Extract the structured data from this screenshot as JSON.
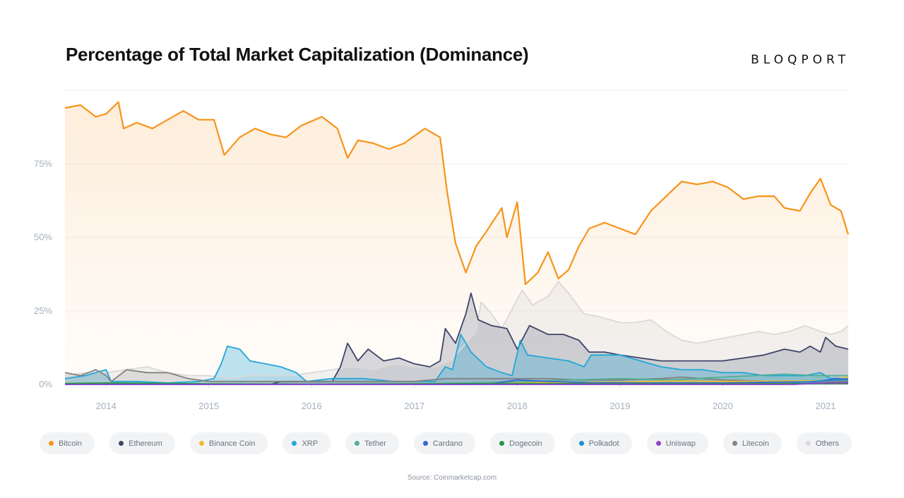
{
  "header": {
    "title": "Percentage of Total Market Capitalization (Dominance)",
    "brand": "BLOQPORT"
  },
  "source": "Source: Coinmarketcap.com",
  "chart_data": {
    "type": "area",
    "title": "Percentage of Total Market Capitalization (Dominance)",
    "xlabel": "",
    "ylabel": "",
    "xlim": [
      2013.6,
      2021.22
    ],
    "ylim": [
      0,
      100
    ],
    "grid": true,
    "y_ticks": [
      "0%",
      "25%",
      "50%",
      "75%"
    ],
    "y_tick_values": [
      0,
      25,
      50,
      75
    ],
    "x_ticks": [
      "2014",
      "2015",
      "2016",
      "2017",
      "2018",
      "2019",
      "2020",
      "2021"
    ],
    "x_tick_values": [
      2014,
      2015,
      2016,
      2017,
      2018,
      2019,
      2020,
      2021
    ],
    "legend_position": "bottom",
    "series": [
      {
        "name": "Bitcoin",
        "color": "#f7931a",
        "points": [
          [
            2013.6,
            94
          ],
          [
            2013.75,
            95
          ],
          [
            2013.9,
            91
          ],
          [
            2014.0,
            92
          ],
          [
            2014.12,
            96
          ],
          [
            2014.17,
            87
          ],
          [
            2014.3,
            89
          ],
          [
            2014.45,
            87
          ],
          [
            2014.6,
            90
          ],
          [
            2014.75,
            93
          ],
          [
            2014.9,
            90
          ],
          [
            2015.05,
            90
          ],
          [
            2015.15,
            78
          ],
          [
            2015.3,
            84
          ],
          [
            2015.45,
            87
          ],
          [
            2015.6,
            85
          ],
          [
            2015.75,
            84
          ],
          [
            2015.9,
            88
          ],
          [
            2016.1,
            91
          ],
          [
            2016.25,
            87
          ],
          [
            2016.35,
            77
          ],
          [
            2016.45,
            83
          ],
          [
            2016.6,
            82
          ],
          [
            2016.75,
            80
          ],
          [
            2016.9,
            82
          ],
          [
            2017.1,
            87
          ],
          [
            2017.25,
            84
          ],
          [
            2017.32,
            65
          ],
          [
            2017.4,
            48
          ],
          [
            2017.5,
            38
          ],
          [
            2017.6,
            47
          ],
          [
            2017.7,
            52
          ],
          [
            2017.85,
            60
          ],
          [
            2017.9,
            50
          ],
          [
            2018.0,
            62
          ],
          [
            2018.08,
            34
          ],
          [
            2018.2,
            38
          ],
          [
            2018.3,
            45
          ],
          [
            2018.4,
            36
          ],
          [
            2018.5,
            39
          ],
          [
            2018.6,
            47
          ],
          [
            2018.7,
            53
          ],
          [
            2018.85,
            55
          ],
          [
            2019.0,
            53
          ],
          [
            2019.15,
            51
          ],
          [
            2019.3,
            59
          ],
          [
            2019.45,
            64
          ],
          [
            2019.6,
            69
          ],
          [
            2019.75,
            68
          ],
          [
            2019.9,
            69
          ],
          [
            2020.05,
            67
          ],
          [
            2020.2,
            63
          ],
          [
            2020.35,
            64
          ],
          [
            2020.5,
            64
          ],
          [
            2020.6,
            60
          ],
          [
            2020.75,
            59
          ],
          [
            2020.85,
            65
          ],
          [
            2020.95,
            70
          ],
          [
            2021.05,
            61
          ],
          [
            2021.15,
            59
          ],
          [
            2021.22,
            51
          ]
        ]
      },
      {
        "name": "Ethereum",
        "color": "#3e4467",
        "points": [
          [
            2013.6,
            0
          ],
          [
            2015.6,
            0
          ],
          [
            2015.7,
            1
          ],
          [
            2016.0,
            1
          ],
          [
            2016.2,
            1
          ],
          [
            2016.28,
            6
          ],
          [
            2016.35,
            14
          ],
          [
            2016.45,
            8
          ],
          [
            2016.55,
            12
          ],
          [
            2016.7,
            8
          ],
          [
            2016.85,
            9
          ],
          [
            2017.0,
            7
          ],
          [
            2017.15,
            6
          ],
          [
            2017.25,
            8
          ],
          [
            2017.3,
            19
          ],
          [
            2017.4,
            14
          ],
          [
            2017.5,
            24
          ],
          [
            2017.55,
            31
          ],
          [
            2017.62,
            22
          ],
          [
            2017.75,
            20
          ],
          [
            2017.9,
            19
          ],
          [
            2018.0,
            12
          ],
          [
            2018.12,
            20
          ],
          [
            2018.3,
            17
          ],
          [
            2018.45,
            17
          ],
          [
            2018.6,
            15
          ],
          [
            2018.7,
            11
          ],
          [
            2018.85,
            11
          ],
          [
            2019.0,
            10
          ],
          [
            2019.2,
            9
          ],
          [
            2019.4,
            8
          ],
          [
            2019.6,
            8
          ],
          [
            2019.8,
            8
          ],
          [
            2020.0,
            8
          ],
          [
            2020.2,
            9
          ],
          [
            2020.4,
            10
          ],
          [
            2020.6,
            12
          ],
          [
            2020.75,
            11
          ],
          [
            2020.85,
            13
          ],
          [
            2020.95,
            11
          ],
          [
            2021.0,
            16
          ],
          [
            2021.1,
            13
          ],
          [
            2021.22,
            12
          ]
        ]
      },
      {
        "name": "Binance Coin",
        "color": "#f3ba2f",
        "points": [
          [
            2013.6,
            0
          ],
          [
            2017.6,
            0
          ],
          [
            2018.0,
            0.5
          ],
          [
            2018.5,
            0.7
          ],
          [
            2019.0,
            0.8
          ],
          [
            2019.5,
            1.2
          ],
          [
            2020.0,
            1.0
          ],
          [
            2020.5,
            1.1
          ],
          [
            2021.0,
            1.3
          ],
          [
            2021.22,
            2.5
          ]
        ]
      },
      {
        "name": "XRP",
        "color": "#23a7d6",
        "points": [
          [
            2013.6,
            2
          ],
          [
            2013.8,
            3
          ],
          [
            2013.9,
            4
          ],
          [
            2014.0,
            5
          ],
          [
            2014.05,
            1
          ],
          [
            2014.3,
            1
          ],
          [
            2014.6,
            0.5
          ],
          [
            2014.9,
            1
          ],
          [
            2015.05,
            2
          ],
          [
            2015.12,
            7
          ],
          [
            2015.18,
            13
          ],
          [
            2015.3,
            12
          ],
          [
            2015.4,
            8
          ],
          [
            2015.55,
            7
          ],
          [
            2015.7,
            6
          ],
          [
            2015.85,
            4
          ],
          [
            2015.95,
            1
          ],
          [
            2016.2,
            2
          ],
          [
            2016.5,
            2
          ],
          [
            2016.8,
            1
          ],
          [
            2017.0,
            1
          ],
          [
            2017.2,
            1
          ],
          [
            2017.3,
            6
          ],
          [
            2017.37,
            5
          ],
          [
            2017.45,
            17
          ],
          [
            2017.55,
            11
          ],
          [
            2017.7,
            6
          ],
          [
            2017.85,
            4
          ],
          [
            2017.95,
            3
          ],
          [
            2018.03,
            15
          ],
          [
            2018.1,
            10
          ],
          [
            2018.3,
            9
          ],
          [
            2018.5,
            8
          ],
          [
            2018.65,
            6
          ],
          [
            2018.72,
            10
          ],
          [
            2018.85,
            10
          ],
          [
            2019.0,
            10
          ],
          [
            2019.2,
            8
          ],
          [
            2019.4,
            6
          ],
          [
            2019.6,
            5
          ],
          [
            2019.8,
            5
          ],
          [
            2020.0,
            4
          ],
          [
            2020.2,
            4
          ],
          [
            2020.4,
            3
          ],
          [
            2020.6,
            3
          ],
          [
            2020.8,
            3
          ],
          [
            2020.95,
            4
          ],
          [
            2021.05,
            2
          ],
          [
            2021.22,
            2
          ]
        ]
      },
      {
        "name": "Tether",
        "color": "#50af95",
        "points": [
          [
            2013.6,
            0
          ],
          [
            2016.5,
            0
          ],
          [
            2017.0,
            0.2
          ],
          [
            2018.0,
            0.8
          ],
          [
            2018.5,
            1.5
          ],
          [
            2019.0,
            2
          ],
          [
            2019.5,
            1.5
          ],
          [
            2020.0,
            2.5
          ],
          [
            2020.3,
            3
          ],
          [
            2020.6,
            3.5
          ],
          [
            2020.9,
            3
          ],
          [
            2021.22,
            3
          ]
        ]
      },
      {
        "name": "Cardano",
        "color": "#3468d1",
        "points": [
          [
            2013.6,
            0
          ],
          [
            2017.7,
            0
          ],
          [
            2018.0,
            1.5
          ],
          [
            2018.3,
            1
          ],
          [
            2018.7,
            0.6
          ],
          [
            2019.2,
            0.5
          ],
          [
            2020.0,
            0.5
          ],
          [
            2020.5,
            0.8
          ],
          [
            2020.9,
            0.9
          ],
          [
            2021.1,
            2
          ],
          [
            2021.22,
            1.8
          ]
        ]
      },
      {
        "name": "Dogecoin",
        "color": "#23983f",
        "points": [
          [
            2013.6,
            0.3
          ],
          [
            2014.0,
            0.5
          ],
          [
            2015.0,
            0.2
          ],
          [
            2016.0,
            0.1
          ],
          [
            2017.0,
            0.2
          ],
          [
            2018.0,
            0.3
          ],
          [
            2019.0,
            0.2
          ],
          [
            2020.0,
            0.2
          ],
          [
            2021.0,
            0.3
          ],
          [
            2021.22,
            0.4
          ]
        ]
      },
      {
        "name": "Polkadot",
        "color": "#1f8dd6",
        "points": [
          [
            2013.6,
            0
          ],
          [
            2020.6,
            0
          ],
          [
            2020.75,
            0.8
          ],
          [
            2020.95,
            1.2
          ],
          [
            2021.1,
            1.5
          ],
          [
            2021.22,
            1.6
          ]
        ]
      },
      {
        "name": "Uniswap",
        "color": "#8e44c9",
        "points": [
          [
            2013.6,
            0
          ],
          [
            2020.7,
            0
          ],
          [
            2020.85,
            0.3
          ],
          [
            2021.0,
            0.5
          ],
          [
            2021.22,
            0.6
          ]
        ]
      },
      {
        "name": "Litecoin",
        "color": "#828282",
        "points": [
          [
            2013.6,
            4
          ],
          [
            2013.75,
            3
          ],
          [
            2013.9,
            5
          ],
          [
            2014.0,
            3
          ],
          [
            2014.05,
            1
          ],
          [
            2014.2,
            5
          ],
          [
            2014.4,
            4
          ],
          [
            2014.6,
            4
          ],
          [
            2014.8,
            2
          ],
          [
            2015.0,
            1
          ],
          [
            2015.2,
            1
          ],
          [
            2015.5,
            1
          ],
          [
            2015.8,
            1
          ],
          [
            2016.0,
            1
          ],
          [
            2016.5,
            1
          ],
          [
            2017.0,
            1
          ],
          [
            2017.3,
            2
          ],
          [
            2017.5,
            2
          ],
          [
            2017.8,
            2
          ],
          [
            2018.0,
            2
          ],
          [
            2018.3,
            2
          ],
          [
            2018.6,
            1.5
          ],
          [
            2019.0,
            1.5
          ],
          [
            2019.4,
            2
          ],
          [
            2019.6,
            2.5
          ],
          [
            2020.0,
            1.5
          ],
          [
            2020.5,
            1
          ],
          [
            2021.0,
            1
          ],
          [
            2021.22,
            1
          ]
        ]
      },
      {
        "name": "Others",
        "color": "#d9d9d9",
        "points": [
          [
            2013.6,
            3
          ],
          [
            2013.8,
            4
          ],
          [
            2014.0,
            4
          ],
          [
            2014.2,
            5
          ],
          [
            2014.4,
            6
          ],
          [
            2014.6,
            4
          ],
          [
            2014.8,
            3
          ],
          [
            2015.0,
            3
          ],
          [
            2015.2,
            2
          ],
          [
            2015.4,
            3
          ],
          [
            2015.6,
            3
          ],
          [
            2015.8,
            3
          ],
          [
            2016.0,
            4
          ],
          [
            2016.2,
            5
          ],
          [
            2016.4,
            6
          ],
          [
            2016.6,
            5
          ],
          [
            2016.8,
            7
          ],
          [
            2017.0,
            6
          ],
          [
            2017.2,
            6
          ],
          [
            2017.35,
            8
          ],
          [
            2017.45,
            12
          ],
          [
            2017.6,
            18
          ],
          [
            2017.65,
            28
          ],
          [
            2017.75,
            24
          ],
          [
            2017.85,
            19
          ],
          [
            2018.0,
            29
          ],
          [
            2018.05,
            32
          ],
          [
            2018.15,
            27
          ],
          [
            2018.3,
            30
          ],
          [
            2018.4,
            35
          ],
          [
            2018.5,
            31
          ],
          [
            2018.65,
            24
          ],
          [
            2018.8,
            23
          ],
          [
            2019.0,
            21
          ],
          [
            2019.15,
            21
          ],
          [
            2019.3,
            22
          ],
          [
            2019.45,
            18
          ],
          [
            2019.6,
            15
          ],
          [
            2019.75,
            14
          ],
          [
            2019.9,
            15
          ],
          [
            2020.05,
            16
          ],
          [
            2020.2,
            17
          ],
          [
            2020.35,
            18
          ],
          [
            2020.5,
            17
          ],
          [
            2020.65,
            18
          ],
          [
            2020.8,
            20
          ],
          [
            2020.95,
            18
          ],
          [
            2021.05,
            17
          ],
          [
            2021.15,
            18
          ],
          [
            2021.22,
            20
          ]
        ]
      }
    ]
  },
  "legend": [
    {
      "label": "Bitcoin",
      "color": "#f7931a"
    },
    {
      "label": "Ethereum",
      "color": "#3e4467"
    },
    {
      "label": "Binance Coin",
      "color": "#f3ba2f"
    },
    {
      "label": "XRP",
      "color": "#23a7d6"
    },
    {
      "label": "Tether",
      "color": "#50af95"
    },
    {
      "label": "Cardano",
      "color": "#3468d1"
    },
    {
      "label": "Dogecoin",
      "color": "#23983f"
    },
    {
      "label": "Polkadot",
      "color": "#1f8dd6"
    },
    {
      "label": "Uniswap",
      "color": "#8e44c9"
    },
    {
      "label": "Litecoin",
      "color": "#828282"
    },
    {
      "label": "Others",
      "color": "#d9d9d9"
    }
  ]
}
